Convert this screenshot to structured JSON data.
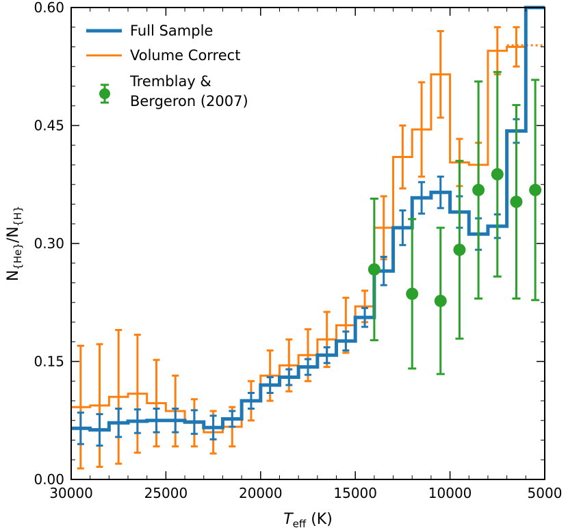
{
  "chart_data": {
    "type": "line",
    "xlabel": "T_eff (K)",
    "xlabel_main": "T",
    "xlabel_sub": "eff",
    "xlabel_unit": " (K)",
    "ylabel": "N_{He}/N_{H}",
    "ylabel_n1": "N",
    "ylabel_sub1": "{He}",
    "ylabel_slash": "/N",
    "ylabel_sub2": "{H}",
    "xlim": [
      30000,
      5000
    ],
    "ylim": [
      0,
      0.6
    ],
    "xticks": [
      30000,
      25000,
      20000,
      15000,
      10000,
      5000
    ],
    "xtick_labels": [
      "30000",
      "25000",
      "20000",
      "15000",
      "10000",
      "5000"
    ],
    "yticks": [
      0.0,
      0.15,
      0.3,
      0.45,
      0.6
    ],
    "ytick_labels": [
      "0.00",
      "0.15",
      "0.30",
      "0.45",
      "0.60"
    ],
    "legend_position": "top-left",
    "series": [
      {
        "name": "Full Sample",
        "style": "step",
        "color": "#1f77b4",
        "x_edges": [
          30000,
          29000,
          28000,
          27000,
          26000,
          25000,
          24000,
          23000,
          22000,
          21000,
          20000,
          19000,
          18000,
          17000,
          16000,
          15000,
          14000,
          13000,
          12000,
          11000,
          10000,
          9000,
          8000,
          7000,
          6000
        ],
        "values": [
          0.065,
          0.063,
          0.072,
          0.074,
          0.075,
          0.075,
          0.073,
          0.066,
          0.077,
          0.1,
          0.12,
          0.13,
          0.143,
          0.158,
          0.176,
          0.206,
          0.265,
          0.32,
          0.358,
          0.365,
          0.34,
          0.312,
          0.322,
          0.443,
          0.62
        ],
        "errors": [
          0.02,
          0.02,
          0.018,
          0.015,
          0.015,
          0.015,
          0.015,
          0.015,
          0.01,
          0.01,
          0.01,
          0.01,
          0.01,
          0.01,
          0.012,
          0.012,
          0.018,
          0.022,
          0.02,
          0.02,
          0.02,
          0.02,
          0.015,
          0.015,
          0.0
        ]
      },
      {
        "name": "Volume Correct",
        "style": "step",
        "color": "#ff7f0e",
        "x_edges": [
          30000,
          29000,
          28000,
          27000,
          26000,
          25000,
          24000,
          23000,
          22000,
          21000,
          20000,
          19000,
          18000,
          17000,
          16000,
          15000,
          14000,
          13000,
          12000,
          11000,
          10000,
          9000,
          8000,
          7000
        ],
        "values": [
          0.092,
          0.094,
          0.105,
          0.109,
          0.097,
          0.087,
          0.072,
          0.06,
          0.067,
          0.1,
          0.132,
          0.145,
          0.158,
          0.178,
          0.196,
          0.22,
          0.32,
          0.41,
          0.445,
          0.515,
          0.403,
          0.4,
          0.545,
          0.55
        ],
        "errors": [
          0.078,
          0.078,
          0.085,
          0.075,
          0.055,
          0.045,
          0.03,
          0.027,
          0.025,
          0.025,
          0.032,
          0.033,
          0.033,
          0.035,
          0.035,
          0.02,
          0.04,
          0.04,
          0.06,
          0.055,
          0.03,
          0.028,
          0.03,
          0.025
        ],
        "dotted_extension": {
          "x": [
            7000,
            5000
          ],
          "value": 0.552
        }
      },
      {
        "name": "Tremblay & Bergeron (2007)",
        "legend_line1": "Tremblay &",
        "legend_line2": "Bergeron (2007)",
        "style": "errorbar-scatter",
        "color": "#2ca02c",
        "x": [
          14000,
          12000,
          10500,
          9500,
          8500,
          7500,
          6500,
          5500
        ],
        "y": [
          0.267,
          0.236,
          0.227,
          0.292,
          0.368,
          0.388,
          0.353,
          0.368
        ],
        "yerr": [
          0.09,
          0.095,
          0.093,
          0.113,
          0.138,
          0.13,
          0.123,
          0.14
        ]
      }
    ]
  }
}
